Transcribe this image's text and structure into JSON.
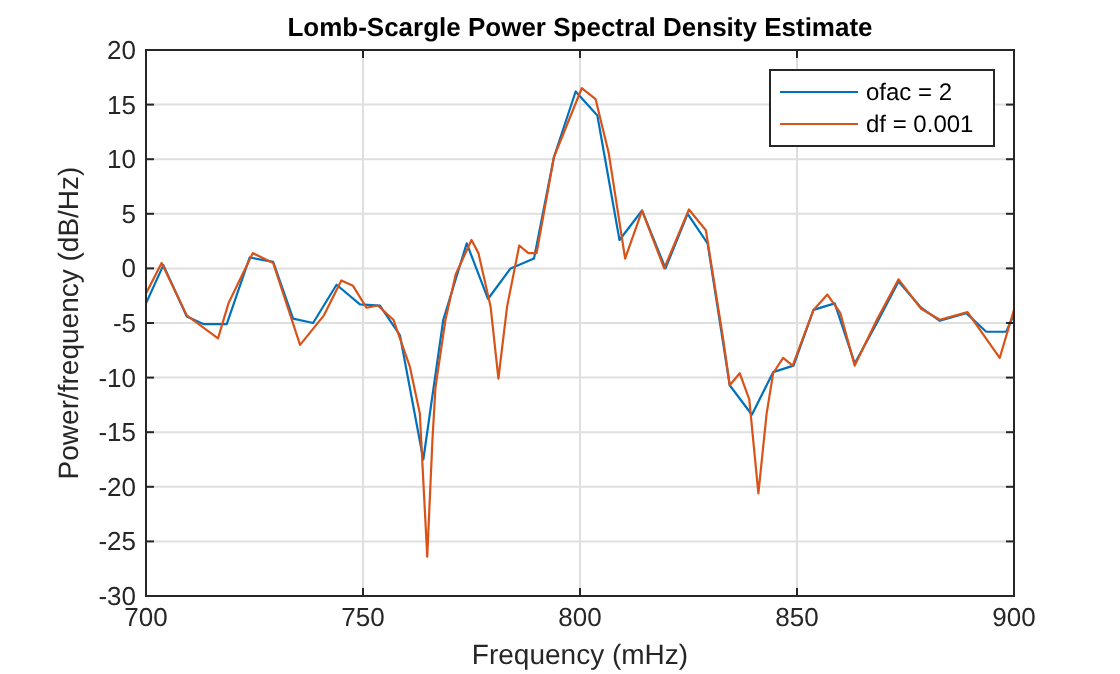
{
  "chart_data": {
    "type": "line",
    "title": "Lomb-Scargle Power Spectral Density Estimate",
    "xlabel": "Frequency (mHz)",
    "ylabel": "Power/frequency (dB/Hz)",
    "xlim": [
      700,
      900
    ],
    "xticks": [
      700,
      750,
      800,
      850,
      900
    ],
    "ylim": [
      -30,
      20
    ],
    "yticks": [
      -30,
      -25,
      -20,
      -15,
      -10,
      -5,
      0,
      5,
      10,
      15,
      20
    ],
    "grid": true,
    "legend": "top right",
    "line_style": "solid",
    "marker": "none",
    "series": [
      {
        "name": "ofac = 2",
        "color": "#0072bd",
        "x": [
          700,
          704,
          709.4,
          713.2,
          718.6,
          723.9,
          729.3,
          733.9,
          738.5,
          743.9,
          749.3,
          753.9,
          758.5,
          763.9,
          768.5,
          773.9,
          778.8,
          784,
          789.4,
          794,
          799,
          804,
          809.1,
          814.3,
          819.7,
          824.8,
          829.4,
          834.5,
          839.6,
          844.5,
          849.2,
          853.8,
          858.7,
          863.3,
          868.4,
          873.4,
          878.6,
          882.9,
          889,
          893.6,
          898.2,
          900
        ],
        "values": [
          -3.2,
          0.3,
          -4.4,
          -5.1,
          -5.1,
          1.0,
          0.6,
          -4.6,
          -5.0,
          -1.5,
          -3.3,
          -3.4,
          -6.1,
          -17.5,
          -4.7,
          2.3,
          -2.8,
          0,
          0.9,
          10.2,
          16.2,
          14.0,
          2.6,
          5.3,
          0,
          5.0,
          2.3,
          -10.7,
          -13.4,
          -9.5,
          -8.9,
          -3.8,
          -3.2,
          -8.7,
          -5.0,
          -1.2,
          -3.6,
          -4.8,
          -4.1,
          -5.8,
          -5.8,
          -4.2
        ]
      },
      {
        "name": "df = 0.001",
        "color": "#d95319",
        "x": [
          700,
          703.6,
          709.4,
          716.6,
          719,
          724.6,
          729.3,
          731.6,
          735.5,
          741,
          745,
          747.7,
          750.8,
          753.4,
          757,
          760.8,
          763.1,
          764.8,
          766,
          766.7,
          769,
          771.4,
          775,
          776.6,
          779.4,
          781.2,
          783.2,
          786,
          788.1,
          790,
          794,
          800.4,
          803.6,
          806.6,
          810.4,
          814.3,
          819.4,
          825.1,
          829,
          833,
          834.5,
          836.8,
          839,
          841.1,
          843,
          844.5,
          846.8,
          849,
          853.8,
          857,
          860,
          863.3,
          868.4,
          873.4,
          878.6,
          882.9,
          889.3,
          896.7,
          900
        ],
        "values": [
          -2.3,
          0.5,
          -4.3,
          -6.4,
          -3.2,
          1.4,
          0.5,
          -2.3,
          -7.0,
          -4.3,
          -1.1,
          -1.6,
          -3.6,
          -3.4,
          -4.7,
          -9.0,
          -13.3,
          -26.4,
          -15.7,
          -10.9,
          -4.7,
          -0.5,
          2.6,
          1.4,
          -3.5,
          -10.1,
          -3.5,
          2.1,
          1.4,
          1.4,
          10.2,
          16.5,
          15.5,
          10.6,
          0.9,
          5.3,
          0,
          5.4,
          3.5,
          -6.5,
          -10.7,
          -9.6,
          -12.0,
          -20.6,
          -13.3,
          -9.6,
          -8.2,
          -8.9,
          -3.8,
          -2.4,
          -4.1,
          -8.9,
          -4.7,
          -1.0,
          -3.7,
          -4.7,
          -4.0,
          -8.2,
          -3.8
        ]
      }
    ]
  }
}
